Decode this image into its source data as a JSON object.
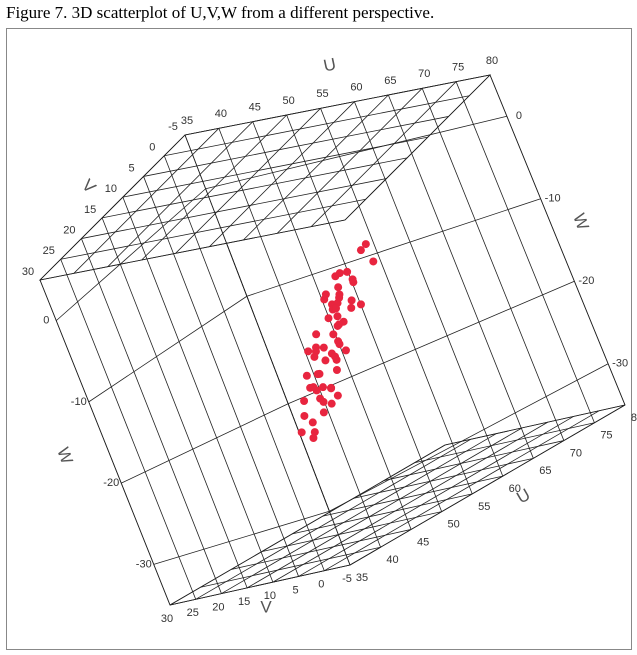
{
  "chart_data": {
    "type": "scatter3d",
    "title": "Figure 7. 3D scatterplot of U,V,W from a different perspective.",
    "xlabel": "U",
    "ylabel": "V",
    "zlabel": "W",
    "xlim": [
      35,
      80
    ],
    "ylim": [
      -5,
      30
    ],
    "zlim": [
      -35,
      5
    ],
    "xticks": [
      35,
      40,
      45,
      50,
      55,
      60,
      65,
      70,
      75,
      80
    ],
    "yticks": [
      -5,
      0,
      5,
      10,
      15,
      20,
      25,
      30
    ],
    "zticks": [
      0,
      -10,
      -20,
      -30
    ],
    "color": "#e8253f",
    "x": [
      63,
      62,
      61.5,
      62.5,
      60.5,
      61,
      60,
      59.5,
      60,
      58.5,
      59,
      58,
      57.5,
      58.5,
      57,
      56.5,
      57,
      56,
      55.5,
      56.5,
      55,
      54.5,
      55,
      54,
      53.5,
      54.5,
      53,
      52.5,
      53,
      52,
      51.5,
      52.5,
      51,
      50.5,
      51,
      50,
      49.5,
      50,
      49,
      48.5,
      64,
      61,
      59,
      57,
      55,
      53,
      51,
      49,
      62,
      58,
      56,
      54,
      52,
      50,
      60,
      57,
      55,
      53,
      51,
      48
    ],
    "y": [
      8,
      12,
      10,
      6,
      14,
      9,
      11,
      7,
      13,
      10,
      8,
      12,
      10,
      6,
      14,
      9,
      11,
      7,
      13,
      10,
      8,
      12,
      10,
      6,
      14,
      9,
      11,
      7,
      13,
      10,
      8,
      12,
      10,
      6,
      14,
      9,
      11,
      7,
      13,
      10,
      8,
      12,
      10,
      6,
      14,
      9,
      11,
      7,
      13,
      10,
      8,
      12,
      10,
      6,
      14,
      9,
      11,
      7,
      13,
      10
    ],
    "z": [
      -7,
      -8,
      -8.5,
      -9,
      -9.5,
      -10,
      -10.5,
      -10,
      -11,
      -11.5,
      -12,
      -12.5,
      -12,
      -13,
      -13.5,
      -14,
      -14.5,
      -14,
      -15,
      -15.5,
      -16,
      -15.5,
      -16.5,
      -17,
      -17.5,
      -17,
      -18,
      -18.5,
      -19,
      -19.5,
      -20,
      -19.5,
      -20.5,
      -21,
      -21.5,
      -22,
      -22.5,
      -21.5,
      -23,
      -23.5,
      -6.5,
      -9.5,
      -11,
      -13,
      -15,
      -17,
      -19,
      -21,
      -8,
      -12,
      -14,
      -16,
      -18,
      -20,
      -10,
      -13,
      -15.5,
      -17.5,
      -20,
      -24
    ]
  }
}
